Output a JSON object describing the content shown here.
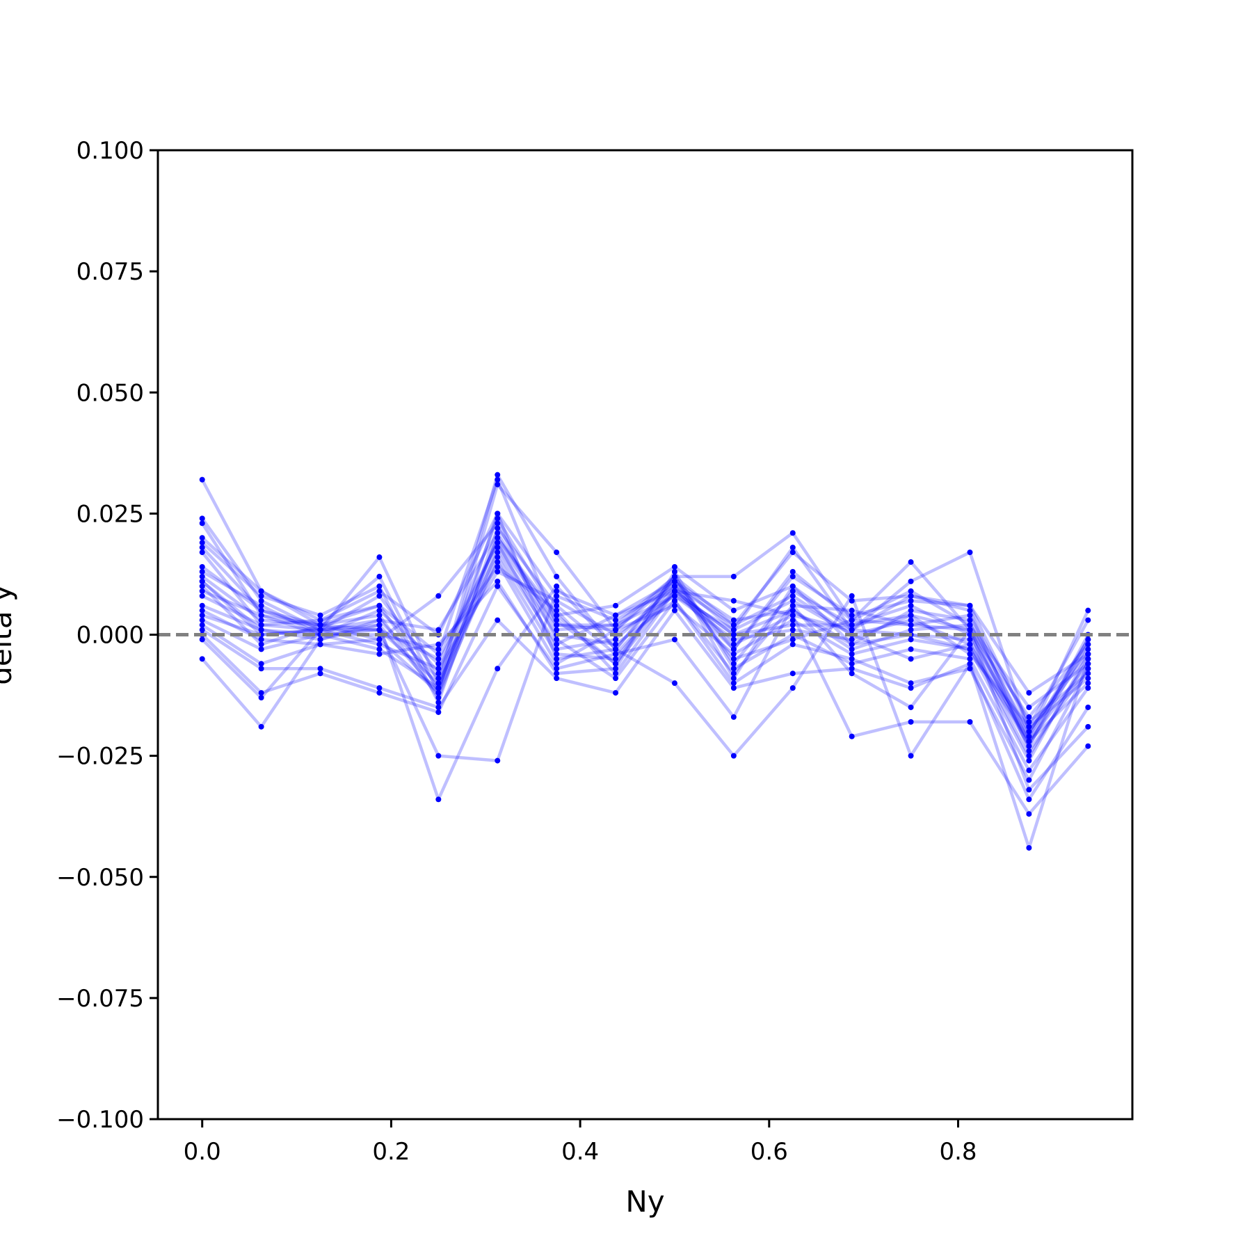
{
  "chart_data": {
    "type": "line",
    "title": "",
    "xlabel": "Ny",
    "ylabel": "delta y",
    "xlim": [
      -0.0469,
      0.9844
    ],
    "ylim": [
      -0.1,
      0.1
    ],
    "x_ticks": [
      0.0,
      0.2,
      0.4,
      0.6,
      0.8
    ],
    "x_tick_labels": [
      "0.0",
      "0.2",
      "0.4",
      "0.6",
      "0.8"
    ],
    "y_ticks": [
      -0.1,
      -0.075,
      -0.05,
      -0.025,
      0.0,
      0.025,
      0.05,
      0.075,
      0.1
    ],
    "y_tick_labels": [
      "−0.100",
      "−0.075",
      "−0.050",
      "−0.025",
      "0.000",
      "0.025",
      "0.050",
      "0.075",
      "0.100"
    ],
    "grid": false,
    "legend": "none",
    "reference_line": {
      "y": 0.0,
      "style": "dashed",
      "color": "#808080"
    },
    "series_color": "#0000ff",
    "x": [
      0.0,
      0.0625,
      0.125,
      0.1875,
      0.25,
      0.3125,
      0.375,
      0.4375,
      0.5,
      0.5625,
      0.625,
      0.6875,
      0.75,
      0.8125,
      0.875,
      0.9375
    ],
    "series": [
      {
        "values": [
          0.032,
          0.009,
          0.002,
          -0.001,
          -0.012,
          0.031,
          0.017,
          0.001,
          0.012,
          0.012,
          0.021,
          0.003,
          0.015,
          0.001,
          -0.022,
          -0.001
        ]
      },
      {
        "values": [
          0.024,
          0.007,
          0.001,
          0.016,
          -0.01,
          0.033,
          0.012,
          -0.003,
          0.011,
          0.001,
          0.018,
          0.001,
          0.011,
          0.017,
          -0.02,
          -0.004
        ]
      },
      {
        "values": [
          0.023,
          0.004,
          0.002,
          0.012,
          -0.012,
          0.025,
          0.008,
          0.003,
          0.01,
          0.002,
          0.017,
          0.007,
          0.008,
          0.005,
          -0.024,
          -0.007
        ]
      },
      {
        "values": [
          0.019,
          0.008,
          0.004,
          0.01,
          -0.014,
          0.022,
          0.006,
          -0.004,
          0.009,
          -0.003,
          0.012,
          0.004,
          0.007,
          0.006,
          -0.019,
          0.003
        ]
      },
      {
        "values": [
          0.018,
          0.005,
          0.001,
          0.008,
          -0.008,
          0.024,
          0.004,
          0.006,
          0.014,
          0.005,
          0.01,
          -0.002,
          0.005,
          0.003,
          -0.021,
          0.005
        ]
      },
      {
        "values": [
          0.017,
          0.002,
          0.003,
          0.006,
          -0.011,
          0.02,
          0.003,
          -0.006,
          0.012,
          -0.006,
          0.009,
          0.002,
          0.004,
          0.001,
          -0.023,
          -0.002
        ]
      },
      {
        "values": [
          0.013,
          0.006,
          0.0,
          0.005,
          -0.006,
          0.019,
          0.002,
          0.002,
          0.008,
          0.001,
          0.007,
          0.0,
          0.003,
          -0.002,
          -0.025,
          -0.005
        ]
      },
      {
        "values": [
          0.012,
          0.003,
          0.002,
          0.004,
          -0.013,
          0.018,
          0.0,
          -0.002,
          0.007,
          -0.008,
          0.006,
          0.005,
          0.002,
          0.004,
          -0.018,
          -0.008
        ]
      },
      {
        "values": [
          0.011,
          0.001,
          -0.001,
          0.003,
          -0.009,
          0.017,
          -0.002,
          0.004,
          0.011,
          0.003,
          0.005,
          -0.003,
          0.001,
          0.002,
          -0.02,
          -0.003
        ]
      },
      {
        "values": [
          0.011,
          0.0,
          0.001,
          0.002,
          -0.012,
          0.016,
          -0.004,
          -0.005,
          0.01,
          -0.002,
          0.004,
          0.001,
          0.0,
          -0.001,
          -0.022,
          -0.006
        ]
      },
      {
        "values": [
          0.01,
          -0.002,
          0.002,
          0.001,
          -0.01,
          0.015,
          -0.006,
          0.001,
          0.006,
          -0.004,
          0.003,
          -0.004,
          -0.001,
          -0.003,
          -0.026,
          -0.004
        ]
      },
      {
        "values": [
          0.009,
          0.004,
          0.0,
          0.0,
          -0.003,
          0.014,
          0.005,
          -0.008,
          0.009,
          0.0,
          0.002,
          0.002,
          0.006,
          0.0,
          -0.021,
          -0.001
        ]
      },
      {
        "values": [
          0.008,
          0.002,
          0.001,
          -0.002,
          -0.007,
          0.013,
          0.007,
          0.0,
          0.008,
          -0.001,
          0.001,
          -0.001,
          0.004,
          -0.004,
          -0.019,
          -0.009
        ]
      },
      {
        "values": [
          0.005,
          -0.001,
          -0.002,
          -0.004,
          -0.002,
          0.011,
          -0.008,
          -0.007,
          0.013,
          -0.007,
          0.0,
          -0.006,
          -0.003,
          -0.005,
          -0.028,
          -0.011
        ]
      },
      {
        "values": [
          0.004,
          0.0,
          0.001,
          0.003,
          0.001,
          0.021,
          0.001,
          0.002,
          0.012,
          0.002,
          0.008,
          0.0,
          -0.005,
          -0.002,
          -0.023,
          0.0
        ]
      },
      {
        "values": [
          0.003,
          -0.003,
          0.0,
          0.001,
          -0.005,
          0.019,
          -0.003,
          -0.001,
          0.01,
          -0.005,
          -0.001,
          0.003,
          0.002,
          0.001,
          -0.017,
          -0.002
        ]
      },
      {
        "values": [
          0.002,
          -0.006,
          -0.002,
          -0.001,
          0.008,
          0.023,
          -0.001,
          -0.009,
          0.007,
          -0.01,
          -0.002,
          -0.005,
          -0.01,
          -0.007,
          -0.03,
          -0.007
        ]
      },
      {
        "values": [
          0.001,
          -0.007,
          -0.007,
          -0.011,
          -0.015,
          0.003,
          -0.009,
          -0.012,
          0.005,
          -0.011,
          -0.008,
          -0.007,
          -0.011,
          -0.006,
          -0.034,
          -0.015
        ]
      },
      {
        "values": [
          0.0,
          -0.012,
          -0.008,
          -0.012,
          -0.016,
          0.01,
          -0.007,
          -0.004,
          -0.001,
          -0.017,
          0.006,
          -0.008,
          -0.015,
          0.001,
          -0.032,
          -0.019
        ]
      },
      {
        "values": [
          -0.001,
          -0.013,
          0.001,
          0.001,
          -0.025,
          -0.026,
          0.009,
          0.004,
          0.009,
          0.007,
          0.004,
          -0.021,
          -0.018,
          -0.018,
          -0.037,
          -0.023
        ]
      },
      {
        "values": [
          -0.005,
          -0.019,
          -0.001,
          0.002,
          -0.034,
          -0.007,
          0.01,
          -0.003,
          -0.01,
          -0.025,
          -0.011,
          0.008,
          -0.025,
          -0.006,
          -0.044,
          -0.005
        ]
      },
      {
        "values": [
          0.014,
          0.005,
          0.002,
          0.006,
          -0.004,
          0.032,
          0.002,
          0.001,
          0.011,
          -0.003,
          0.013,
          0.003,
          0.009,
          0.002,
          -0.015,
          -0.006
        ]
      },
      {
        "values": [
          0.006,
          0.001,
          0.0,
          -0.003,
          -0.011,
          0.02,
          0.004,
          -0.006,
          0.009,
          0.0,
          0.005,
          -0.002,
          0.0,
          -0.003,
          -0.022,
          -0.01
        ]
      },
      {
        "values": [
          0.02,
          0.009,
          0.003,
          0.009,
          0.0,
          0.025,
          -0.005,
          -0.003,
          0.012,
          -0.009,
          0.01,
          0.001,
          0.008,
          0.006,
          -0.012,
          -0.004
        ]
      }
    ]
  }
}
